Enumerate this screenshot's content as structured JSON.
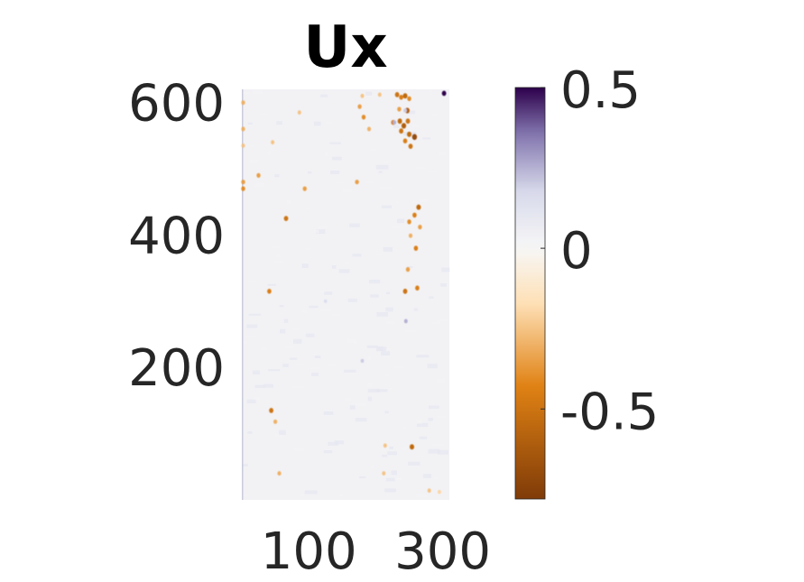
{
  "chart_data": {
    "type": "heatmap",
    "title": "Ux",
    "xlabel": "",
    "ylabel": "",
    "xlim": [
      0,
      310
    ],
    "ylim": [
      0,
      620
    ],
    "x_ticks": [
      {
        "value": 100,
        "label": "100"
      },
      {
        "value": 300,
        "label": "300"
      }
    ],
    "y_ticks": [
      {
        "value": 200,
        "label": "200"
      },
      {
        "value": 400,
        "label": "400"
      },
      {
        "value": 600,
        "label": "600"
      }
    ],
    "colorbar": {
      "range": [
        -0.78,
        0.5
      ],
      "ticks": [
        {
          "value": 0.5,
          "label": "0.5"
        },
        {
          "value": 0,
          "label": "0"
        },
        {
          "value": -0.5,
          "label": "-0.5"
        }
      ],
      "colors": {
        "max": "#2d004b",
        "upper": "#8073ac",
        "light_upper": "#d8daeb",
        "zero": "#f7f7f7",
        "light_lower": "#fee0b6",
        "lower": "#e08214",
        "min": "#7f3b08"
      }
    },
    "background_value": 0.03,
    "hot_spots": [
      {
        "x": 232,
        "y": 612,
        "v": -0.5
      },
      {
        "x": 238,
        "y": 608,
        "v": -0.45
      },
      {
        "x": 244,
        "y": 610,
        "v": -0.55
      },
      {
        "x": 250,
        "y": 606,
        "v": -0.4
      },
      {
        "x": 302,
        "y": 614,
        "v": 0.5
      },
      {
        "x": 235,
        "y": 590,
        "v": -0.35
      },
      {
        "x": 247,
        "y": 588,
        "v": -0.6
      },
      {
        "x": 236,
        "y": 572,
        "v": -0.55
      },
      {
        "x": 226,
        "y": 570,
        "v": -0.45
      },
      {
        "x": 242,
        "y": 565,
        "v": -0.6
      },
      {
        "x": 248,
        "y": 572,
        "v": -0.5
      },
      {
        "x": 238,
        "y": 557,
        "v": -0.5
      },
      {
        "x": 250,
        "y": 552,
        "v": -0.55
      },
      {
        "x": 258,
        "y": 548,
        "v": -0.7
      },
      {
        "x": 244,
        "y": 542,
        "v": -0.45
      },
      {
        "x": 252,
        "y": 534,
        "v": -0.5
      },
      {
        "x": 176,
        "y": 594,
        "v": -0.35
      },
      {
        "x": 182,
        "y": 578,
        "v": -0.4
      },
      {
        "x": 190,
        "y": 560,
        "v": -0.3
      },
      {
        "x": 180,
        "y": 610,
        "v": -0.25
      },
      {
        "x": 206,
        "y": 612,
        "v": -0.25
      },
      {
        "x": 172,
        "y": 480,
        "v": -0.35
      },
      {
        "x": 228,
        "y": 570,
        "v": 0.25
      },
      {
        "x": 244,
        "y": 588,
        "v": 0.2
      },
      {
        "x": 264,
        "y": 442,
        "v": -0.55
      },
      {
        "x": 258,
        "y": 430,
        "v": -0.45
      },
      {
        "x": 250,
        "y": 420,
        "v": -0.4
      },
      {
        "x": 266,
        "y": 412,
        "v": -0.35
      },
      {
        "x": 252,
        "y": 399,
        "v": -0.3
      },
      {
        "x": 260,
        "y": 380,
        "v": -0.45
      },
      {
        "x": 248,
        "y": 348,
        "v": -0.35
      },
      {
        "x": 244,
        "y": 315,
        "v": -0.5
      },
      {
        "x": 262,
        "y": 320,
        "v": -0.45
      },
      {
        "x": 245,
        "y": 270,
        "v": 0.25
      },
      {
        "x": 94,
        "y": 470,
        "v": -0.35
      },
      {
        "x": 66,
        "y": 425,
        "v": -0.5
      },
      {
        "x": 25,
        "y": 490,
        "v": -0.35
      },
      {
        "x": 41,
        "y": 315,
        "v": -0.45
      },
      {
        "x": 86,
        "y": 585,
        "v": -0.25
      },
      {
        "x": 46,
        "y": 540,
        "v": -0.25
      },
      {
        "x": 2,
        "y": 560,
        "v": -0.3
      },
      {
        "x": 2,
        "y": 470,
        "v": -0.4
      },
      {
        "x": 2,
        "y": 480,
        "v": -0.35
      },
      {
        "x": 2,
        "y": 600,
        "v": -0.3
      },
      {
        "x": 2,
        "y": 535,
        "v": -0.25
      },
      {
        "x": 44,
        "y": 135,
        "v": -0.5
      },
      {
        "x": 50,
        "y": 118,
        "v": -0.3
      },
      {
        "x": 56,
        "y": 40,
        "v": -0.3
      },
      {
        "x": 254,
        "y": 80,
        "v": -0.55
      },
      {
        "x": 214,
        "y": 82,
        "v": -0.25
      },
      {
        "x": 212,
        "y": 40,
        "v": -0.25
      },
      {
        "x": 280,
        "y": 14,
        "v": -0.25
      },
      {
        "x": 295,
        "y": 12,
        "v": -0.2
      },
      {
        "x": 180,
        "y": 210,
        "v": 0.2
      },
      {
        "x": 125,
        "y": 300,
        "v": 0.15
      }
    ]
  }
}
